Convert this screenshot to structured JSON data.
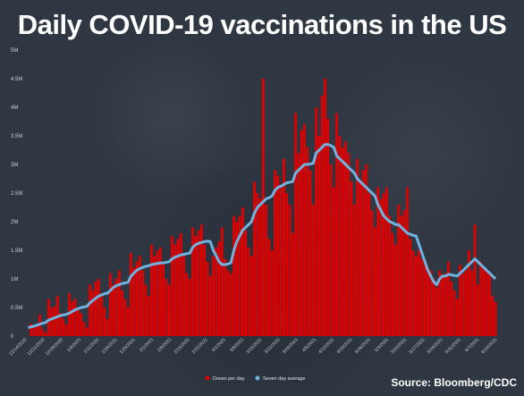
{
  "title": "Daily COVID-19 vaccinations in the US",
  "source": "Source: Bloomberg/CDC",
  "colors": {
    "bars": "#e00000",
    "line": "#6fb3e0",
    "background": "#2e3742"
  },
  "chart_data": {
    "type": "bar",
    "title": "Daily COVID-19 vaccinations in the US",
    "ylim": [
      0,
      5000000
    ],
    "yticks": [
      0,
      500000,
      1000000,
      1500000,
      2000000,
      2500000,
      3000000,
      3500000,
      4000000,
      4500000,
      5000000
    ],
    "ytick_labels": [
      "0",
      "0.5M",
      "1M",
      "1.5M",
      "2M",
      "2.5M",
      "3M",
      "3.5M",
      "4M",
      "4.5M",
      "5M"
    ],
    "x_start": "12/14/2020",
    "x_end": "6/14/2021",
    "legend_position": "bottom",
    "series": [
      {
        "name": "Doses per day",
        "type": "bar",
        "color": "#e00000",
        "values": [
          0,
          220000,
          150000,
          200000,
          380000,
          120000,
          60000,
          650000,
          500000,
          520000,
          700000,
          400000,
          300000,
          200000,
          750000,
          600000,
          650000,
          500000,
          400000,
          250000,
          150000,
          900000,
          800000,
          950000,
          1000000,
          750000,
          500000,
          300000,
          1100000,
          900000,
          1000000,
          1150000,
          800000,
          650000,
          500000,
          1450000,
          1200000,
          1300000,
          1400000,
          1150000,
          900000,
          700000,
          1600000,
          1400000,
          1500000,
          1550000,
          1300000,
          1000000,
          900000,
          1750000,
          1600000,
          1700000,
          1800000,
          1400000,
          1100000,
          1000000,
          1900000,
          1750000,
          1850000,
          1950000,
          1600000,
          1300000,
          1050000,
          1400000,
          1550000,
          1650000,
          1900000,
          1350000,
          1150000,
          1100000,
          2100000,
          2000000,
          2100000,
          2250000,
          1850000,
          1550000,
          1400000,
          2700000,
          2500000,
          2400000,
          4500000,
          2300000,
          1700000,
          1500000,
          2900000,
          2800000,
          2600000,
          3100000,
          2500000,
          2300000,
          1800000,
          3900000,
          3200000,
          3600000,
          3700000,
          3300000,
          2900000,
          2300000,
          4000000,
          3500000,
          4200000,
          4500000,
          3800000,
          3000000,
          2600000,
          3900000,
          3500000,
          3300000,
          3400000,
          3200000,
          2700000,
          2300000,
          3100000,
          2700000,
          2900000,
          3000000,
          2500000,
          2200000,
          1900000,
          2600000,
          2400000,
          2500000,
          2600000,
          2100000,
          1800000,
          1600000,
          2300000,
          2100000,
          2200000,
          2600000,
          1700000,
          1500000,
          1400000,
          1500000,
          1350000,
          1300000,
          1200000,
          1150000,
          1000000,
          850000,
          1150000,
          1050000,
          1100000,
          1300000,
          950000,
          800000,
          650000,
          1250000,
          1100000,
          1150000,
          1500000,
          1150000,
          1950000,
          900000,
          1300000,
          1200000,
          1150000,
          1100000,
          700000,
          600000
        ]
      },
      {
        "name": "Seven day average",
        "type": "line",
        "color": "#6fb3e0",
        "values": [
          150000,
          160000,
          175000,
          190000,
          210000,
          225000,
          240000,
          280000,
          300000,
          320000,
          340000,
          360000,
          370000,
          380000,
          400000,
          430000,
          460000,
          480000,
          500000,
          510000,
          520000,
          580000,
          620000,
          660000,
          700000,
          720000,
          740000,
          750000,
          800000,
          850000,
          880000,
          900000,
          920000,
          930000,
          940000,
          1050000,
          1100000,
          1150000,
          1180000,
          1200000,
          1220000,
          1230000,
          1250000,
          1260000,
          1270000,
          1280000,
          1280000,
          1290000,
          1300000,
          1350000,
          1380000,
          1400000,
          1420000,
          1430000,
          1440000,
          1450000,
          1550000,
          1600000,
          1620000,
          1640000,
          1650000,
          1660000,
          1650000,
          1500000,
          1400000,
          1300000,
          1250000,
          1250000,
          1260000,
          1280000,
          1500000,
          1650000,
          1750000,
          1850000,
          1900000,
          1950000,
          2000000,
          2150000,
          2250000,
          2300000,
          2350000,
          2400000,
          2420000,
          2450000,
          2550000,
          2600000,
          2620000,
          2650000,
          2680000,
          2690000,
          2700000,
          2850000,
          2900000,
          2950000,
          3000000,
          3000000,
          3010000,
          3020000,
          3200000,
          3250000,
          3300000,
          3350000,
          3350000,
          3330000,
          3300000,
          3150000,
          3100000,
          3050000,
          3000000,
          2950000,
          2900000,
          2850000,
          2750000,
          2700000,
          2650000,
          2600000,
          2550000,
          2500000,
          2450000,
          2300000,
          2200000,
          2100000,
          2050000,
          2000000,
          1980000,
          1950000,
          1950000,
          1900000,
          1850000,
          1800000,
          1780000,
          1760000,
          1750000,
          1600000,
          1450000,
          1300000,
          1150000,
          1050000,
          950000,
          900000,
          1000000,
          1050000,
          1050000,
          1080000,
          1070000,
          1060000,
          1050000,
          1100000,
          1150000,
          1200000,
          1250000,
          1300000,
          1350000,
          1300000,
          1250000,
          1200000,
          1150000,
          1100000,
          1050000,
          1000000
        ]
      }
    ],
    "xtick_labels": [
      "12/14/2020",
      "12/21/2020",
      "12/28/2020",
      "1/4/2021",
      "1/11/2021",
      "1/18/2021",
      "1/25/2021",
      "2/1/2021",
      "2/8/2021",
      "2/15/2021",
      "2/22/2021",
      "3/1/2021",
      "3/8/2021",
      "3/15/2021",
      "3/22/2021",
      "3/29/2021",
      "4/5/2021",
      "4/12/2021",
      "4/19/2021",
      "4/26/2021",
      "5/3/2021",
      "5/10/2021",
      "5/17/2021",
      "5/24/2021",
      "5/31/2021",
      "6/7/2021",
      "6/14/2021"
    ]
  },
  "legend": {
    "bars_label": "Doses per day",
    "line_label": "Seven day average"
  }
}
